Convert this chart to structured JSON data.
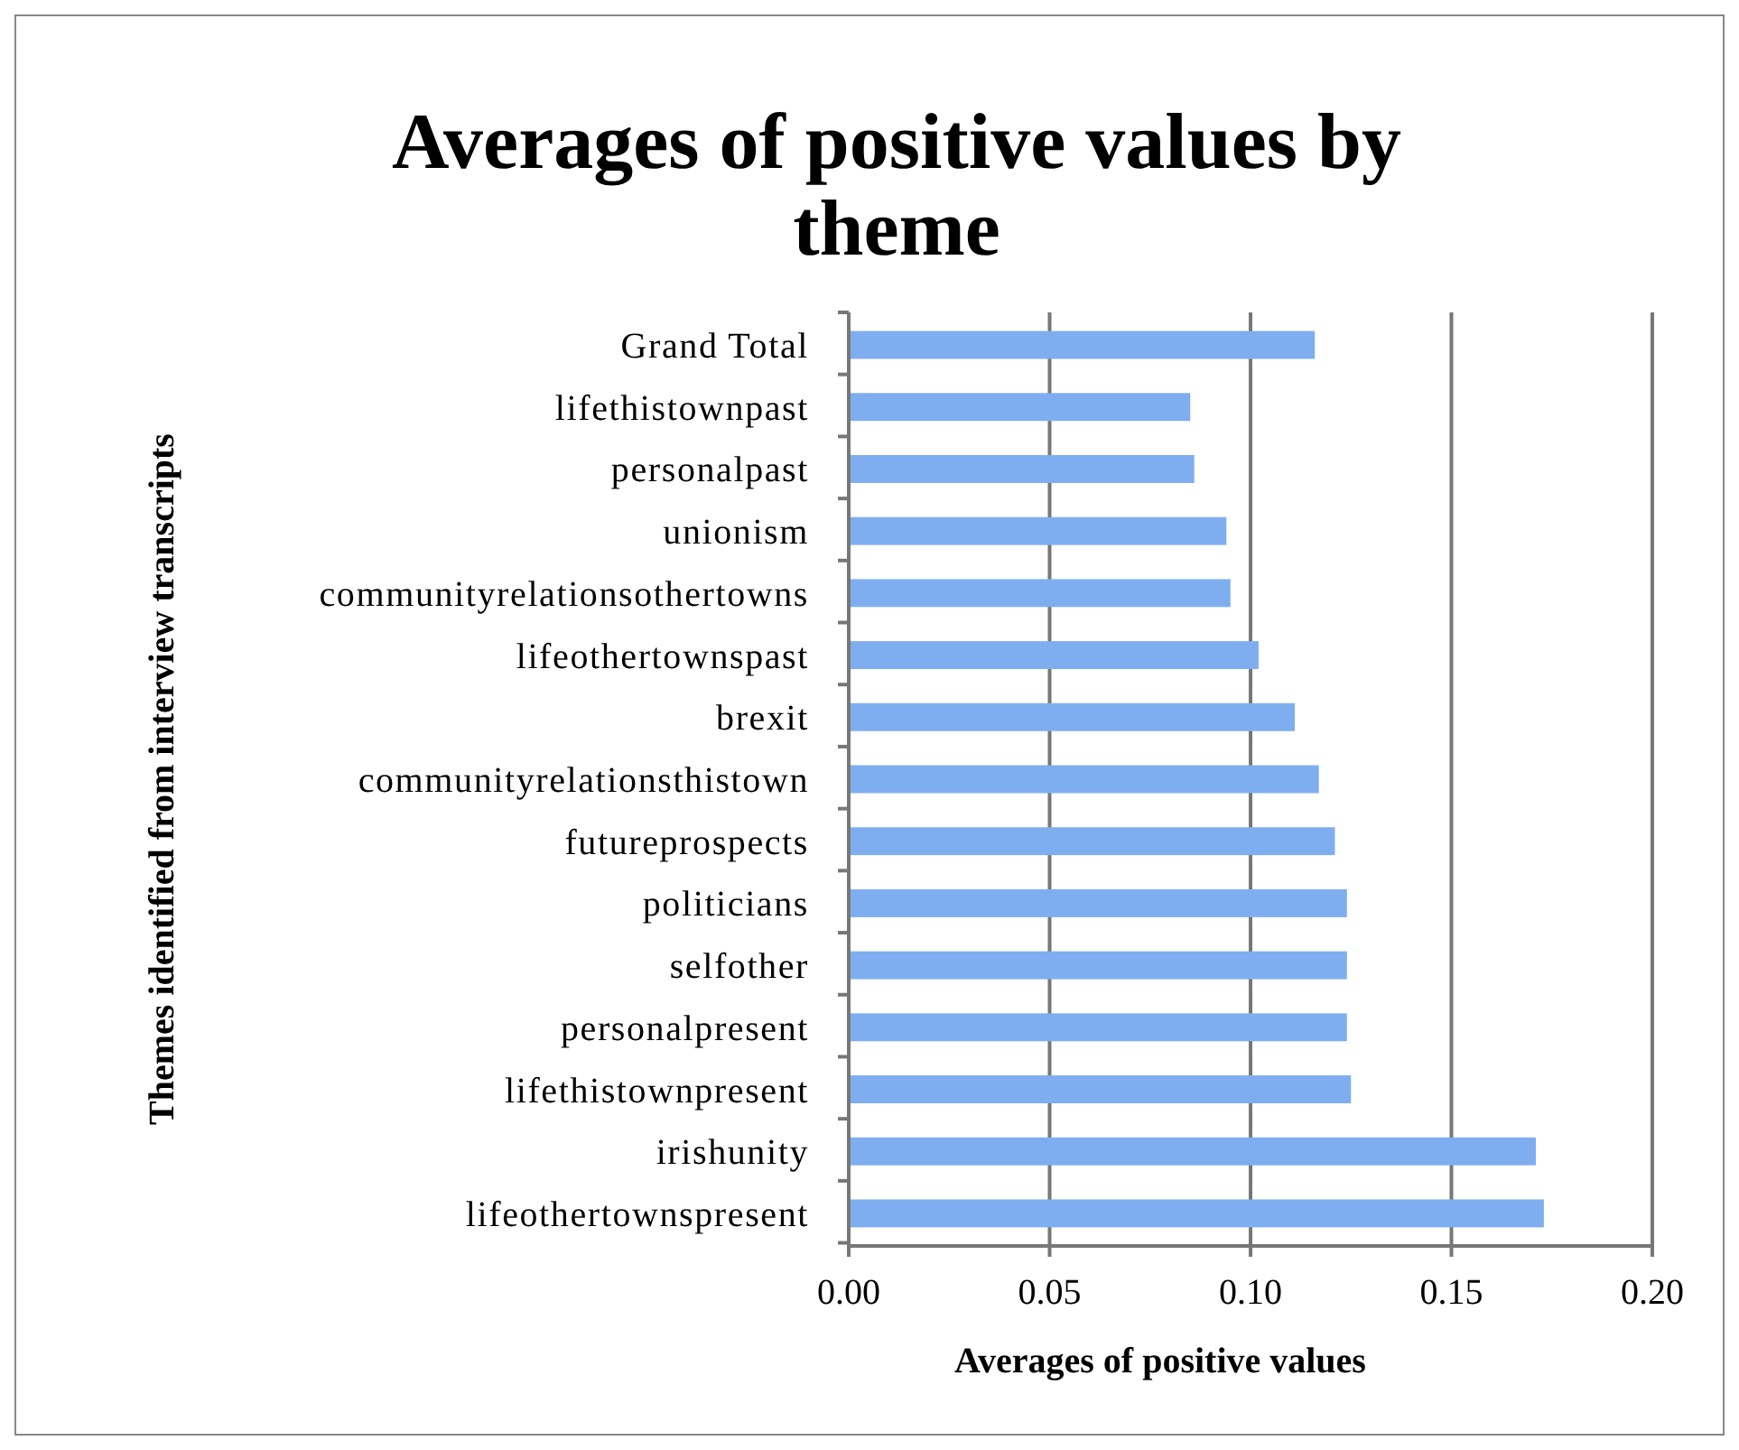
{
  "chart_data": {
    "type": "bar",
    "orientation": "horizontal",
    "title": "Averages of positive values by theme",
    "xlabel": "Averages of positive values",
    "ylabel": "Themes identified from interview transcripts",
    "categories": [
      "Grand Total",
      "lifethistownpast",
      "personalpast",
      "unionism",
      "communityrelationsothertowns",
      "lifeothertownspast",
      "brexit",
      "communityrelationsthistown",
      "futureprospects",
      "politicians",
      "selfother",
      "personalpresent",
      "lifethistownpresent",
      "irishunity",
      "lifeothertownspresent"
    ],
    "values": [
      0.116,
      0.085,
      0.086,
      0.094,
      0.095,
      0.102,
      0.111,
      0.117,
      0.121,
      0.124,
      0.124,
      0.124,
      0.125,
      0.171,
      0.173
    ],
    "color": "#7eaeef",
    "xlim": [
      0,
      0.2
    ],
    "xticks": [
      {
        "value": 0,
        "label": "0.00"
      },
      {
        "value": 0.05,
        "label": "0.05"
      },
      {
        "value": 0.1,
        "label": "0.10"
      },
      {
        "value": 0.15,
        "label": "0.15"
      },
      {
        "value": 0.2,
        "label": "0.20"
      }
    ],
    "grid": "x"
  }
}
